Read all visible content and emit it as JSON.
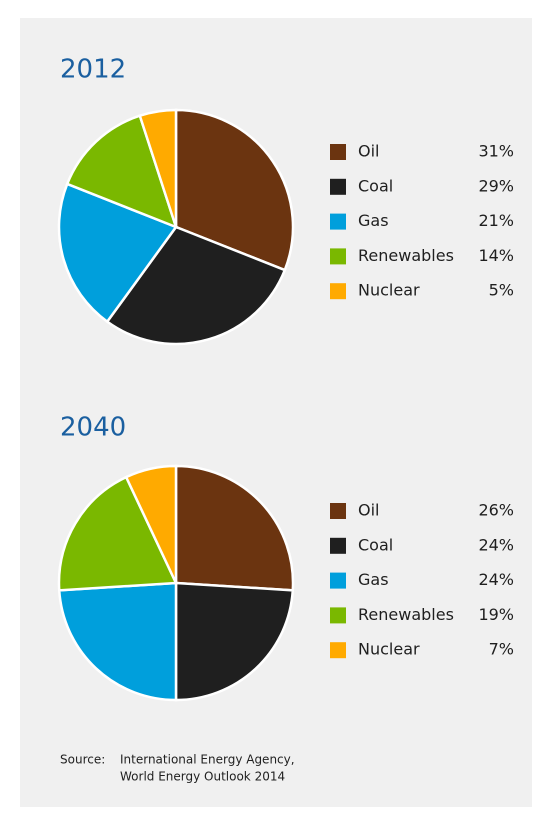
{
  "chart_data": [
    {
      "type": "pie",
      "title": "2012",
      "categories": [
        "Oil",
        "Coal",
        "Gas",
        "Renewables",
        "Nuclear"
      ],
      "values": [
        31,
        29,
        21,
        14,
        5
      ],
      "value_labels": [
        "31%",
        "29%",
        "21%",
        "14%",
        "5%"
      ],
      "colors": [
        "#6b3410",
        "#1f1f1f",
        "#009fdc",
        "#7ab800",
        "#ffaa00"
      ]
    },
    {
      "type": "pie",
      "title": "2040",
      "categories": [
        "Oil",
        "Coal",
        "Gas",
        "Renewables",
        "Nuclear"
      ],
      "values": [
        26,
        24,
        24,
        19,
        7
      ],
      "value_labels": [
        "26%",
        "24%",
        "24%",
        "19%",
        "7%"
      ],
      "colors": [
        "#6b3410",
        "#1f1f1f",
        "#009fdc",
        "#7ab800",
        "#ffaa00"
      ]
    }
  ],
  "source": {
    "label": "Source:",
    "lines": [
      "International Energy Agency,",
      "World Energy Outlook 2014"
    ]
  }
}
